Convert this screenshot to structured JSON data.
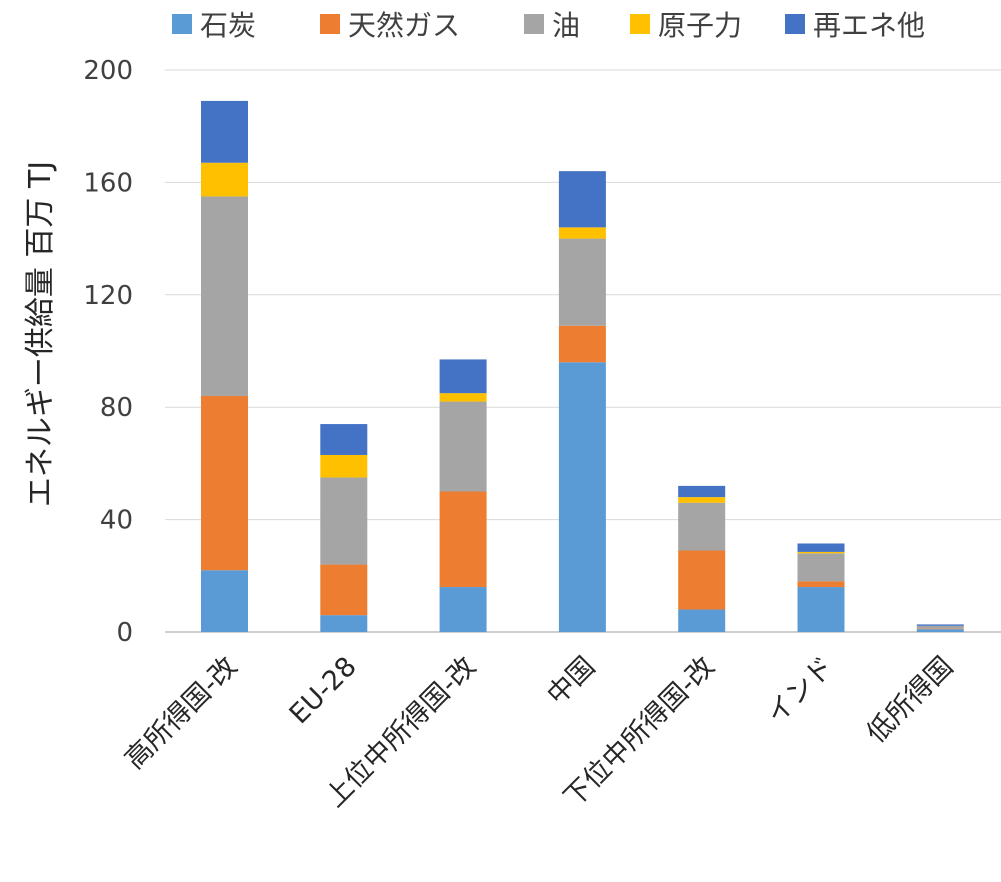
{
  "chart_data": {
    "type": "bar",
    "stacked": true,
    "title": "",
    "xlabel": "",
    "ylabel": "エネルギー供給量 百万 TJ",
    "ylim": [
      0,
      200
    ],
    "yticks": [
      0,
      40,
      80,
      120,
      160,
      200
    ],
    "grid": true,
    "legend_position": "top",
    "categories": [
      "高所得国-改",
      "EU-28",
      "上位中所得国-改",
      "中国",
      "下位中所得国-改",
      "インド",
      "低所得国"
    ],
    "series": [
      {
        "name": "石炭",
        "color": "#5B9BD5",
        "values": [
          22,
          6,
          16,
          96,
          8,
          16,
          1
        ]
      },
      {
        "name": "天然ガス",
        "color": "#ED7D31",
        "values": [
          62,
          18,
          34,
          13,
          21,
          2,
          0.2
        ]
      },
      {
        "name": "油",
        "color": "#A5A5A5",
        "values": [
          71,
          31,
          32,
          31,
          17,
          10,
          1
        ]
      },
      {
        "name": "原子力",
        "color": "#FFC000",
        "values": [
          12,
          8,
          3,
          4,
          2,
          0.5,
          0
        ]
      },
      {
        "name": "再エネ他",
        "color": "#4472C4",
        "values": [
          22,
          11,
          12,
          20,
          4,
          3,
          0.5
        ]
      }
    ]
  }
}
